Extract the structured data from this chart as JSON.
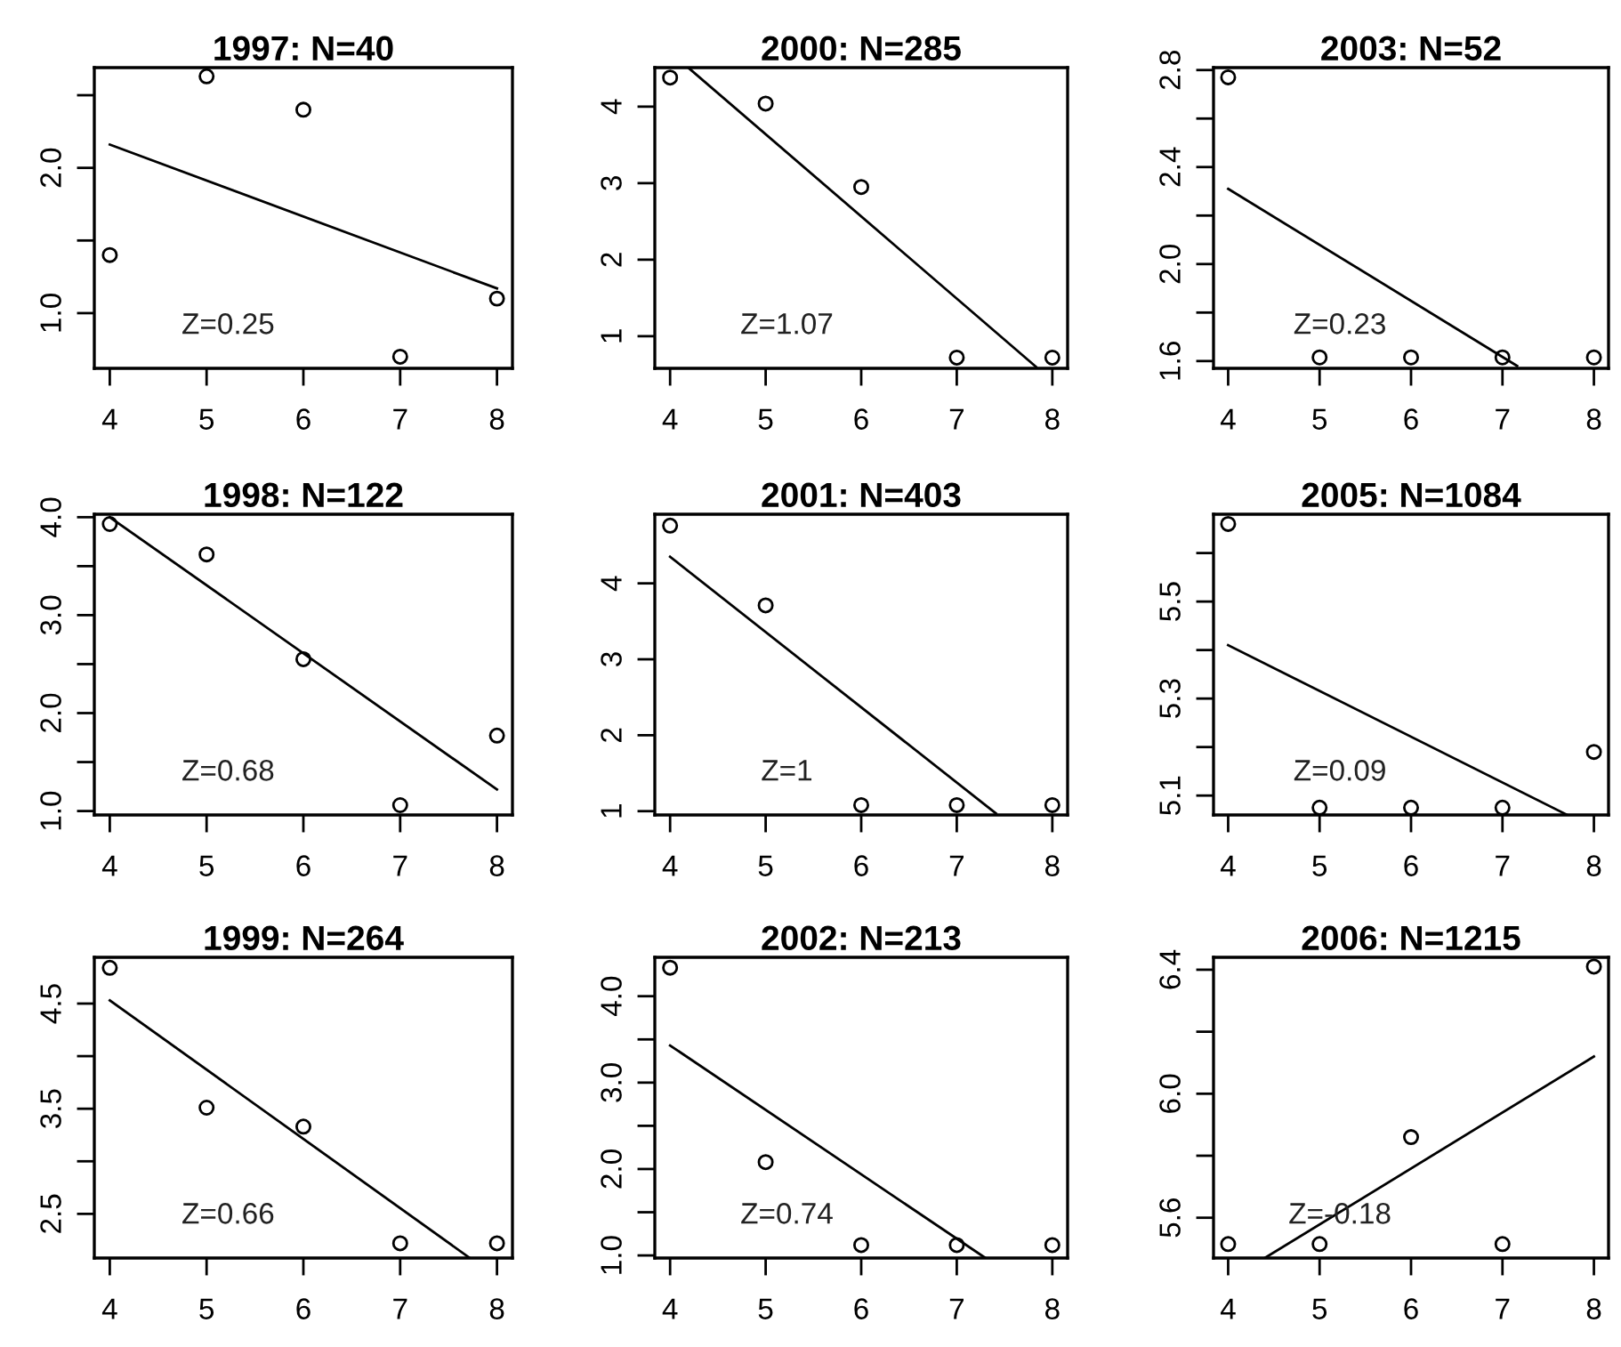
{
  "chart_data": [
    {
      "type": "scatter",
      "title": "1997: N=40",
      "x": [
        4,
        5,
        6,
        7,
        8
      ],
      "xlim": [
        3.84,
        8.16
      ],
      "ylim": [
        0.62,
        2.69
      ],
      "xticks": [
        4,
        5,
        6,
        7,
        8
      ],
      "yticks": [
        {
          "value": 1,
          "label": "1.0"
        },
        {
          "value": 1.5,
          "label": null
        },
        {
          "value": 2,
          "label": "2.0"
        },
        {
          "value": 2.5,
          "label": null
        }
      ],
      "annotations": [
        "Z=0.25"
      ],
      "series": [
        {
          "marker": "circle",
          "color": "#000000",
          "values": [
            1.4,
            2.63,
            2.4,
            0.7,
            1.1
          ]
        },
        {
          "type": "line",
          "marker": "none",
          "color": "#000000",
          "x": [
            4,
            8
          ],
          "values": [
            2.16,
            1.17
          ]
        }
      ]
    },
    {
      "type": "scatter",
      "title": "2000: N=285",
      "x": [
        4,
        5,
        6,
        7,
        8
      ],
      "xlim": [
        3.84,
        8.16
      ],
      "ylim": [
        0.58,
        4.51
      ],
      "xticks": [
        4,
        5,
        6,
        7,
        8
      ],
      "yticks": [
        1,
        2,
        3,
        4
      ],
      "annotations": [
        "Z=1.07"
      ],
      "series": [
        {
          "marker": "circle",
          "color": "#000000",
          "values": [
            4.38,
            4.04,
            2.95,
            0.72,
            0.72
          ]
        },
        {
          "type": "line",
          "marker": "none",
          "color": "#000000",
          "x": [
            4.19,
            7.83
          ],
          "values": [
            4.51,
            0.6
          ]
        }
      ]
    },
    {
      "type": "scatter",
      "title": "2003: N=52",
      "x": [
        4,
        5,
        6,
        7,
        8
      ],
      "xlim": [
        3.84,
        8.16
      ],
      "ylim": [
        1.57,
        2.81
      ],
      "xticks": [
        4,
        5,
        6,
        7,
        8
      ],
      "yticks": [
        1.6,
        {
          "value": 1.8,
          "label": null
        },
        {
          "value": 2,
          "label": "2.0"
        },
        {
          "value": 2.2,
          "label": null
        },
        2.4,
        {
          "value": 2.6,
          "label": null
        },
        2.8
      ],
      "annotations": [
        "Z=0.23"
      ],
      "series": [
        {
          "marker": "circle",
          "color": "#000000",
          "values": [
            2.77,
            1.615,
            1.615,
            1.615,
            1.615
          ]
        },
        {
          "type": "line",
          "marker": "none",
          "color": "#000000",
          "x": [
            4,
            7.16
          ],
          "values": [
            2.31,
            1.58
          ]
        }
      ]
    },
    {
      "type": "scatter",
      "title": "1998: N=122",
      "x": [
        4,
        5,
        6,
        7,
        8
      ],
      "xlim": [
        3.84,
        8.16
      ],
      "ylim": [
        0.96,
        4.03
      ],
      "xticks": [
        4,
        5,
        6,
        7,
        8
      ],
      "yticks": [
        {
          "value": 1,
          "label": "1.0"
        },
        {
          "value": 1.5,
          "label": null
        },
        {
          "value": 2,
          "label": "2.0"
        },
        {
          "value": 2.5,
          "label": null
        },
        {
          "value": 3,
          "label": "3.0"
        },
        {
          "value": 3.5,
          "label": null
        },
        {
          "value": 4,
          "label": "4.0"
        }
      ],
      "annotations": [
        "Z=0.68"
      ],
      "series": [
        {
          "marker": "circle",
          "color": "#000000",
          "values": [
            3.93,
            3.62,
            2.55,
            1.06,
            1.77
          ]
        },
        {
          "type": "line",
          "marker": "none",
          "color": "#000000",
          "x": [
            4,
            8
          ],
          "values": [
            4.0,
            1.22
          ]
        }
      ]
    },
    {
      "type": "scatter",
      "title": "2001: N=403",
      "x": [
        4,
        5,
        6,
        7,
        8
      ],
      "xlim": [
        3.84,
        8.16
      ],
      "ylim": [
        0.95,
        4.91
      ],
      "xticks": [
        4,
        5,
        6,
        7,
        8
      ],
      "yticks": [
        1,
        2,
        3,
        4
      ],
      "annotations": [
        "Z=1"
      ],
      "series": [
        {
          "marker": "circle",
          "color": "#000000",
          "values": [
            4.76,
            3.71,
            1.08,
            1.08,
            1.08
          ]
        },
        {
          "type": "line",
          "marker": "none",
          "color": "#000000",
          "x": [
            4,
            7.41
          ],
          "values": [
            4.35,
            0.97
          ]
        }
      ]
    },
    {
      "type": "scatter",
      "title": "2005: N=1084",
      "x": [
        4,
        5,
        6,
        7,
        8
      ],
      "xlim": [
        3.84,
        8.16
      ],
      "ylim": [
        5.06,
        5.68
      ],
      "xticks": [
        4,
        5,
        6,
        7,
        8
      ],
      "yticks": [
        5.1,
        {
          "value": 5.2,
          "label": null
        },
        5.3,
        {
          "value": 5.4,
          "label": null
        },
        5.5,
        {
          "value": 5.6,
          "label": null
        }
      ],
      "annotations": [
        "Z=0.09"
      ],
      "series": [
        {
          "marker": "circle",
          "color": "#000000",
          "values": [
            5.66,
            5.075,
            5.075,
            5.075,
            5.19
          ]
        },
        {
          "type": "line",
          "marker": "none",
          "color": "#000000",
          "x": [
            4,
            7.71
          ],
          "values": [
            5.41,
            5.06
          ]
        }
      ]
    },
    {
      "type": "scatter",
      "title": "1999: N=264",
      "x": [
        4,
        5,
        6,
        7,
        8
      ],
      "xlim": [
        3.84,
        8.16
      ],
      "ylim": [
        2.08,
        4.94
      ],
      "xticks": [
        4,
        5,
        6,
        7,
        8
      ],
      "yticks": [
        2.5,
        {
          "value": 3,
          "label": null
        },
        3.5,
        {
          "value": 4,
          "label": null
        },
        4.5
      ],
      "annotations": [
        "Z=0.66"
      ],
      "series": [
        {
          "marker": "circle",
          "color": "#000000",
          "values": [
            4.84,
            3.51,
            3.33,
            2.22,
            2.22
          ]
        },
        {
          "type": "line",
          "marker": "none",
          "color": "#000000",
          "x": [
            4,
            7.72
          ],
          "values": [
            4.53,
            2.08
          ]
        }
      ]
    },
    {
      "type": "scatter",
      "title": "2002: N=213",
      "x": [
        4,
        5,
        6,
        7,
        8
      ],
      "xlim": [
        3.84,
        8.16
      ],
      "ylim": [
        0.97,
        4.45
      ],
      "xticks": [
        4,
        5,
        6,
        7,
        8
      ],
      "yticks": [
        {
          "value": 1,
          "label": "1.0"
        },
        {
          "value": 1.5,
          "label": null
        },
        {
          "value": 2,
          "label": "2.0"
        },
        {
          "value": 2.5,
          "label": null
        },
        {
          "value": 3,
          "label": "3.0"
        },
        {
          "value": 3.5,
          "label": null
        },
        {
          "value": 4,
          "label": "4.0"
        }
      ],
      "annotations": [
        "Z=0.74"
      ],
      "series": [
        {
          "marker": "circle",
          "color": "#000000",
          "values": [
            4.33,
            2.08,
            1.12,
            1.12,
            1.12
          ]
        },
        {
          "type": "line",
          "marker": "none",
          "color": "#000000",
          "x": [
            4,
            7.3
          ],
          "values": [
            3.43,
            0.97
          ]
        }
      ]
    },
    {
      "type": "scatter",
      "title": "2006: N=1215",
      "x": [
        4,
        5,
        6,
        7,
        8
      ],
      "xlim": [
        3.84,
        8.16
      ],
      "ylim": [
        5.47,
        6.44
      ],
      "xticks": [
        4,
        5,
        6,
        7,
        8
      ],
      "yticks": [
        5.6,
        {
          "value": 5.8,
          "label": null
        },
        {
          "value": 6,
          "label": "6.0"
        },
        {
          "value": 6.2,
          "label": null
        },
        6.4
      ],
      "annotations": [
        "Z=-0.18"
      ],
      "series": [
        {
          "marker": "circle",
          "color": "#000000",
          "values": [
            5.515,
            5.515,
            5.86,
            5.515,
            6.41
          ]
        },
        {
          "type": "line",
          "marker": "none",
          "color": "#000000",
          "x": [
            4.4,
            8
          ],
          "values": [
            5.47,
            6.12
          ]
        }
      ]
    }
  ]
}
